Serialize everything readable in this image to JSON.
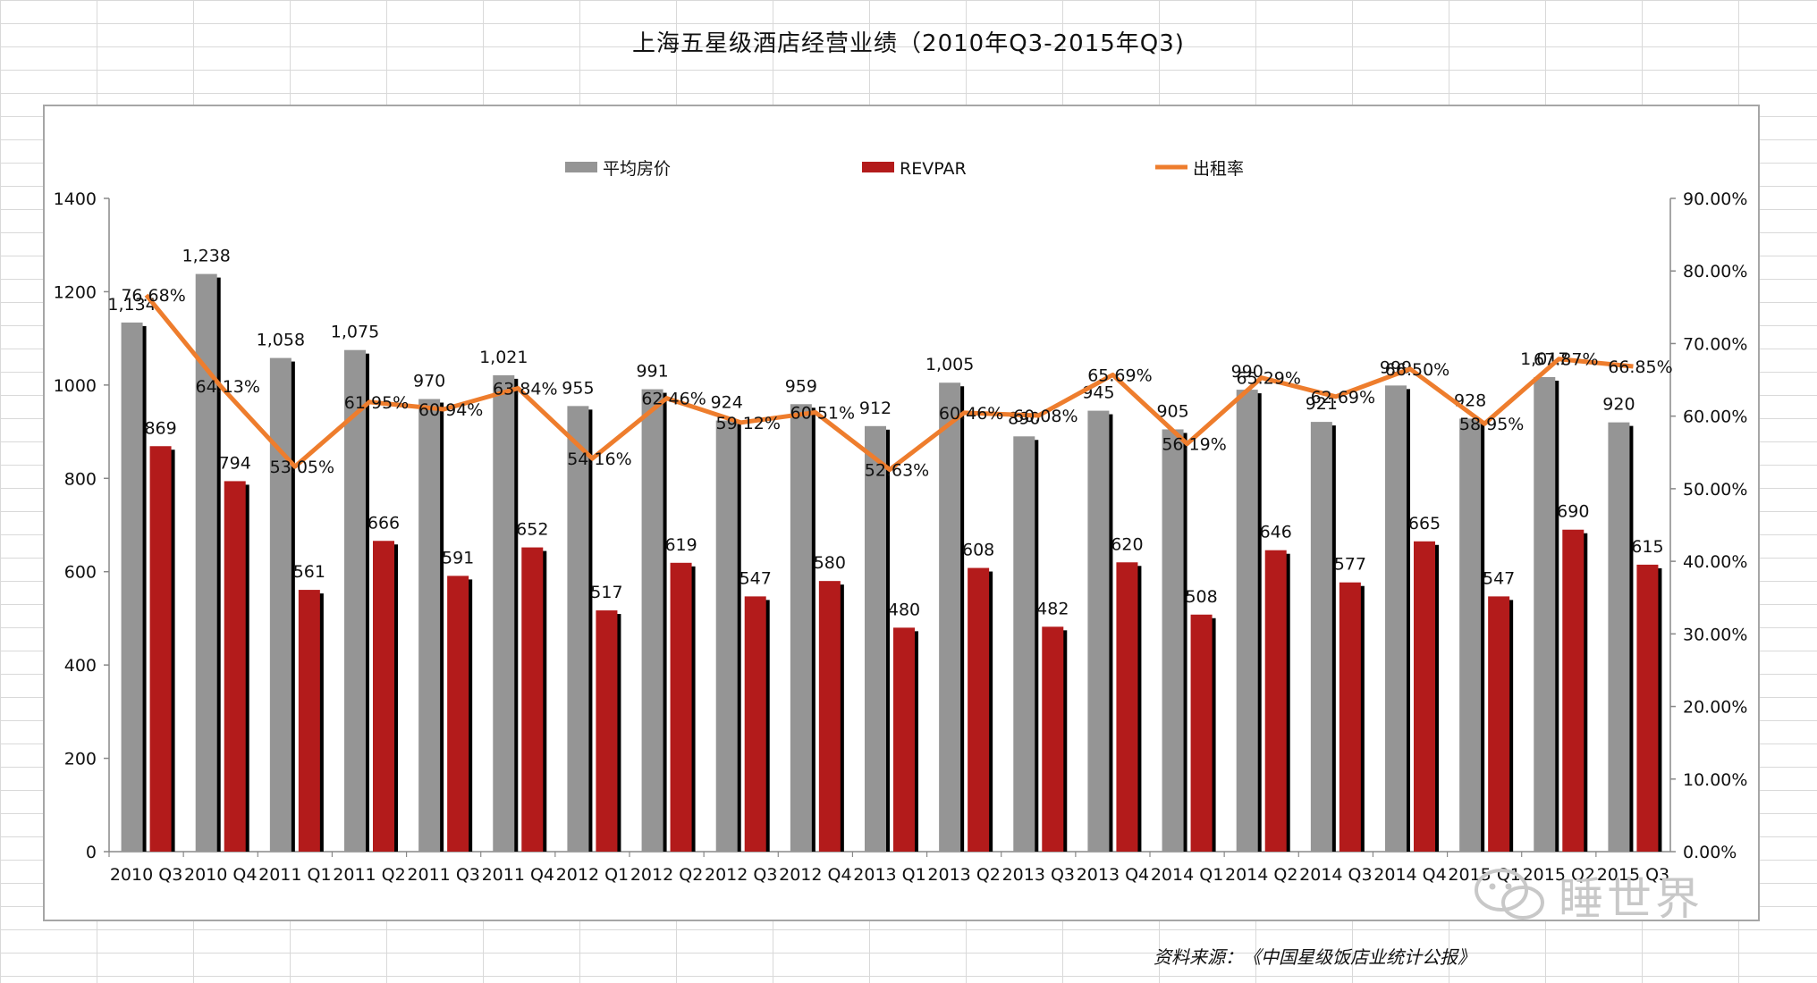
{
  "title": "上海五星级酒店经营业绩（2010年Q3-2015年Q3)",
  "source": "资料来源：《中国星级饭店业统计公报》",
  "watermark": "睡世界",
  "chart_data": {
    "type": "bar",
    "categories": [
      "2010 Q3",
      "2010 Q4",
      "2011 Q1",
      "2011 Q2",
      "2011 Q3",
      "2011 Q4",
      "2012 Q1",
      "2012 Q2",
      "2012 Q3",
      "2012 Q4",
      "2013 Q1",
      "2013 Q2",
      "2013 Q3",
      "2013 Q4",
      "2014 Q1",
      "2014 Q2",
      "2014 Q3",
      "2014 Q4",
      "2015 Q1",
      "2015 Q2",
      "2015 Q3"
    ],
    "series": [
      {
        "name": "平均房价",
        "type": "bar",
        "axis": "left",
        "color": "#959595",
        "values": [
          1134,
          1238,
          1058,
          1075,
          970,
          1021,
          955,
          991,
          924,
          959,
          912,
          1005,
          890,
          945,
          905,
          990,
          921,
          999,
          928,
          1017,
          920
        ],
        "labels": [
          "1,134",
          "1,238",
          "1,058",
          "1,075",
          "970",
          "1,021",
          "955",
          "991",
          "924",
          "959",
          "912",
          "1,005",
          "890",
          "945",
          "905",
          "990",
          "921",
          "999",
          "928",
          "1,017",
          "920"
        ]
      },
      {
        "name": "REVPAR",
        "type": "bar",
        "axis": "left",
        "color": "#b31b1b",
        "values": [
          869,
          794,
          561,
          666,
          591,
          652,
          517,
          619,
          547,
          580,
          480,
          608,
          482,
          620,
          508,
          646,
          577,
          665,
          547,
          690,
          615
        ],
        "labels": [
          "869",
          "794",
          "561",
          "666",
          "591",
          "652",
          "517",
          "619",
          "547",
          "580",
          "480",
          "608",
          "482",
          "620",
          "508",
          "646",
          "577",
          "665",
          "547",
          "690",
          "615"
        ]
      },
      {
        "name": "出租率",
        "type": "line",
        "axis": "right",
        "color": "#ee7d2d",
        "values": [
          76.68,
          64.13,
          53.05,
          61.95,
          60.94,
          63.84,
          54.16,
          62.46,
          59.12,
          60.51,
          52.63,
          60.46,
          60.08,
          65.69,
          56.19,
          65.29,
          62.69,
          66.5,
          58.95,
          67.87,
          66.85
        ],
        "labels": [
          "76.68%",
          "64.13%",
          "53.05%",
          "61.95%",
          "60.94%",
          "63.84%",
          "54.16%",
          "62.46%",
          "59.12%",
          "60.51%",
          "52.63%",
          "60.46%",
          "60.08%",
          "65.69%",
          "56.19%",
          "65.29%",
          "62.69%",
          "66.50%",
          "58.95%",
          "67.87%",
          "66.85%"
        ]
      }
    ],
    "left_axis": {
      "min": 0,
      "max": 1400,
      "ticks": [
        "0",
        "200",
        "400",
        "600",
        "800",
        "1000",
        "1200",
        "1400"
      ]
    },
    "right_axis": {
      "min": 0,
      "max": 90,
      "ticks": [
        "0.00%",
        "10.00%",
        "20.00%",
        "30.00%",
        "40.00%",
        "50.00%",
        "60.00%",
        "70.00%",
        "80.00%",
        "90.00%"
      ]
    },
    "legend_position": "top",
    "grid": false
  }
}
